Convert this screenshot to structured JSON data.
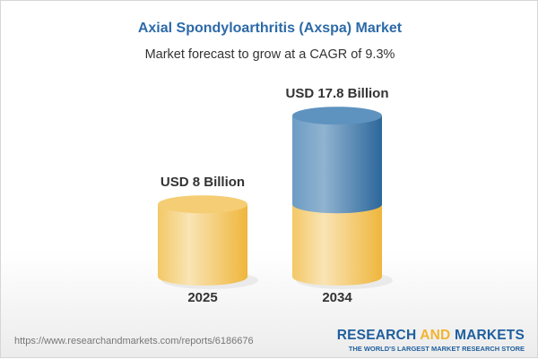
{
  "header": {
    "title": "Axial Spondyloarthritis (Axspa) Market",
    "subtitle": "Market forecast to grow at a CAGR of 9.3%"
  },
  "chart_data": {
    "type": "bar",
    "style": "3d-cylinder",
    "categories": [
      "2025",
      "2034"
    ],
    "values": [
      8,
      17.8
    ],
    "unit": "USD Billion",
    "data_labels": [
      "USD 8 Billion",
      "USD 17.8 Billion"
    ],
    "colors": {
      "base": "#f2c35a",
      "growth": "#3f78aa"
    },
    "grid": false
  },
  "footer": {
    "url": "https://www.researchandmarkets.com/reports/6186676",
    "logo_part1": "RESEARCH ",
    "logo_part2": "AND",
    "logo_part3": " MARKETS",
    "tagline": "THE WORLD'S LARGEST MARKET RESEARCH STORE"
  }
}
